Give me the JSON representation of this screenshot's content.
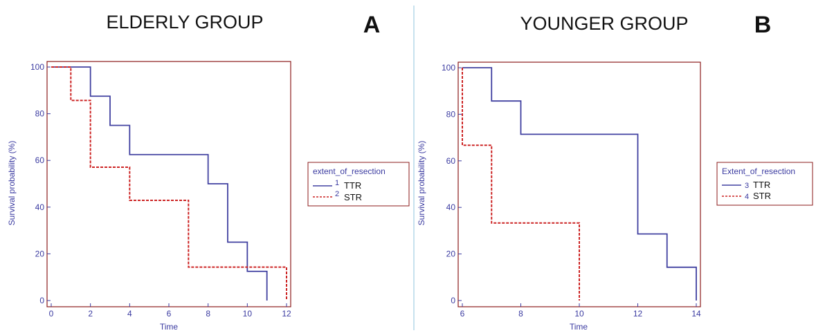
{
  "panels": [
    {
      "title": "ELDERLY GROUP",
      "letter": "A",
      "legend": {
        "title": "extent_of_resection",
        "entries": [
          {
            "code": "1",
            "name": "TTR"
          },
          {
            "code": "2",
            "name": "STR"
          }
        ]
      }
    },
    {
      "title": "YOUNGER GROUP",
      "letter": "B",
      "legend": {
        "title": "Extent_of_resection",
        "entries": [
          {
            "code": "3",
            "name": "TTR"
          },
          {
            "code": "4",
            "name": "STR"
          }
        ]
      }
    }
  ],
  "colors": {
    "frame": "#8b1a1a",
    "axis_text": "#3a3aa0",
    "ttr": "#4040a0",
    "str": "#cc2222",
    "divider": "#8fc3dd"
  },
  "chart_data": [
    {
      "type": "line",
      "step": true,
      "title": "ELDERLY GROUP",
      "xlabel": "Time",
      "ylabel": "Survival probability (%)",
      "xlim": [
        0,
        12
      ],
      "ylim": [
        0,
        100
      ],
      "xticks": [
        0,
        2,
        4,
        6,
        8,
        10,
        12
      ],
      "yticks": [
        0,
        20,
        40,
        60,
        80,
        100
      ],
      "grid": false,
      "legend_position": "right",
      "series": [
        {
          "name": "TTR",
          "code": "1",
          "style": "solid",
          "x": [
            0,
            2,
            3,
            4,
            8,
            9,
            10,
            11
          ],
          "y": [
            100,
            87.5,
            75,
            62.5,
            50,
            25,
            12.5,
            0
          ]
        },
        {
          "name": "STR",
          "code": "2",
          "style": "dashed",
          "x": [
            0,
            1,
            2,
            4,
            7,
            12
          ],
          "y": [
            100,
            85.7,
            57.1,
            42.9,
            14.3,
            0
          ]
        }
      ]
    },
    {
      "type": "line",
      "step": true,
      "title": "YOUNGER GROUP",
      "xlabel": "Time",
      "ylabel": "Survival probability (%)",
      "xlim": [
        6,
        14
      ],
      "ylim": [
        0,
        100
      ],
      "xticks": [
        6,
        8,
        10,
        12,
        14
      ],
      "yticks": [
        0,
        20,
        40,
        60,
        80,
        100
      ],
      "grid": false,
      "legend_position": "right",
      "series": [
        {
          "name": "TTR",
          "code": "3",
          "style": "solid",
          "x": [
            6,
            7,
            8,
            12,
            13,
            14
          ],
          "y": [
            100,
            85.7,
            71.4,
            28.6,
            14.3,
            0
          ]
        },
        {
          "name": "STR",
          "code": "4",
          "style": "dashed",
          "x": [
            6,
            7,
            10
          ],
          "y": [
            66.7,
            33.3,
            0
          ]
        }
      ]
    }
  ]
}
